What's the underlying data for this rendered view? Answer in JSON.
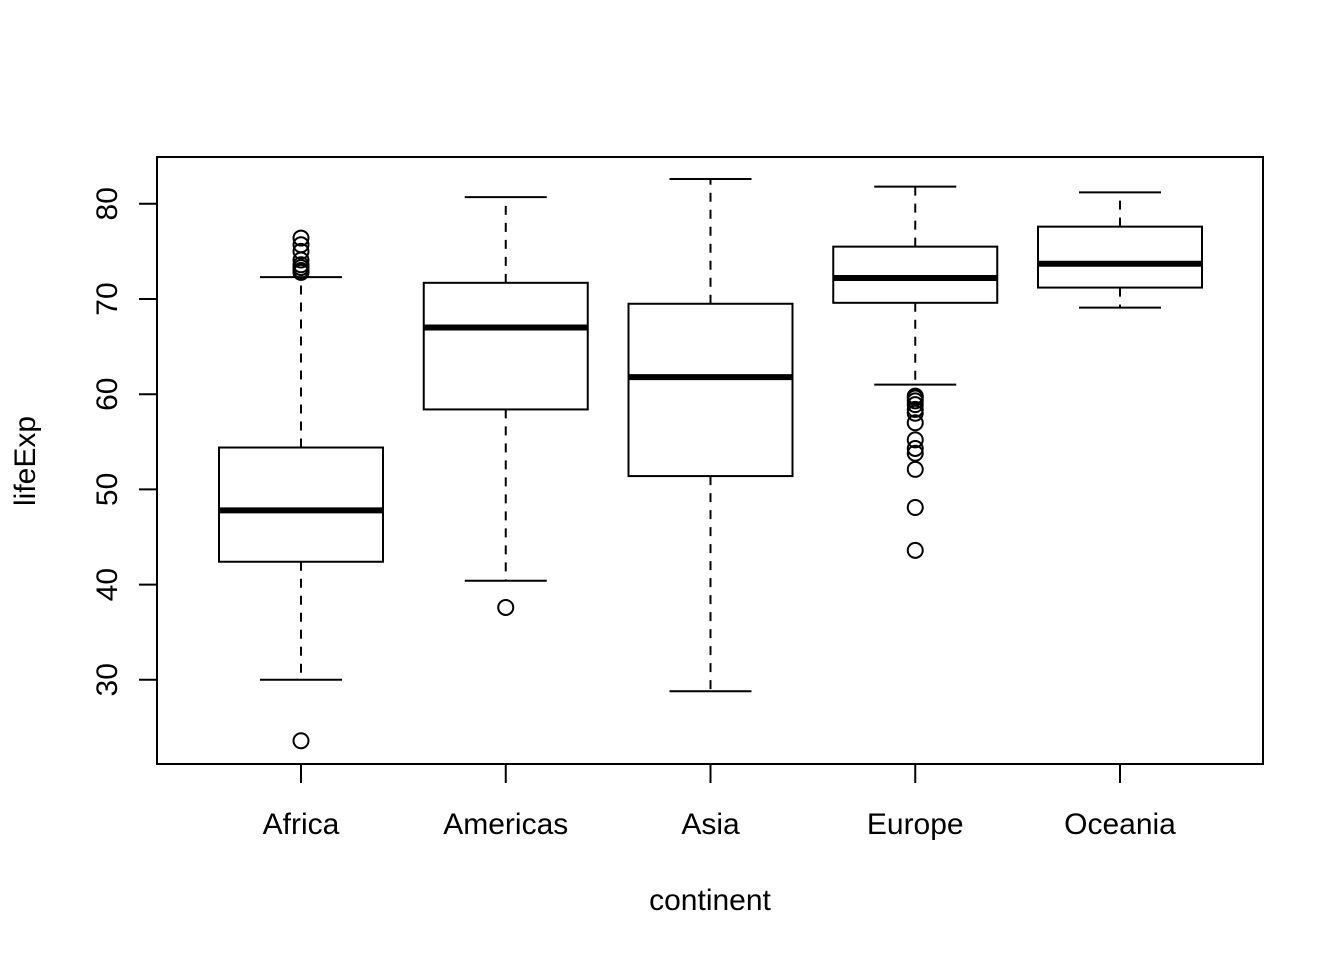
{
  "chart_data": {
    "type": "boxplot",
    "title": "",
    "xlabel": "continent",
    "ylabel": "lifeExp",
    "ylim": [
      21.9,
      85.0
    ],
    "yticks": [
      30,
      40,
      50,
      60,
      70,
      80
    ],
    "grid": false,
    "legend": "none",
    "colors": {
      "line": "#000000",
      "box_fill": "#ffffff",
      "background": "#ffffff"
    },
    "boxes": [
      {
        "category": "Africa",
        "whisker_low": 30.0,
        "q1": 42.4,
        "median": 47.8,
        "q3": 54.4,
        "whisker_high": 72.3,
        "outliers": [
          23.6,
          72.8,
          73.0,
          73.3,
          73.6,
          74.1,
          75.0,
          75.7,
          76.4
        ]
      },
      {
        "category": "Americas",
        "whisker_low": 40.4,
        "q1": 58.4,
        "median": 67.0,
        "q3": 71.7,
        "whisker_high": 80.7,
        "outliers": [
          37.6
        ]
      },
      {
        "category": "Asia",
        "whisker_low": 28.8,
        "q1": 51.4,
        "median": 61.8,
        "q3": 69.5,
        "whisker_high": 82.6,
        "outliers": []
      },
      {
        "category": "Europe",
        "whisker_low": 61.0,
        "q1": 69.6,
        "median": 72.2,
        "q3": 75.5,
        "whisker_high": 81.8,
        "outliers": [
          43.6,
          48.1,
          52.1,
          53.8,
          54.3,
          55.2,
          57.0,
          58.0,
          58.4,
          58.9,
          59.3,
          59.6,
          59.8
        ]
      },
      {
        "category": "Oceania",
        "whisker_low": 69.1,
        "q1": 71.2,
        "median": 73.7,
        "q3": 77.6,
        "whisker_high": 81.2,
        "outliers": []
      }
    ]
  }
}
